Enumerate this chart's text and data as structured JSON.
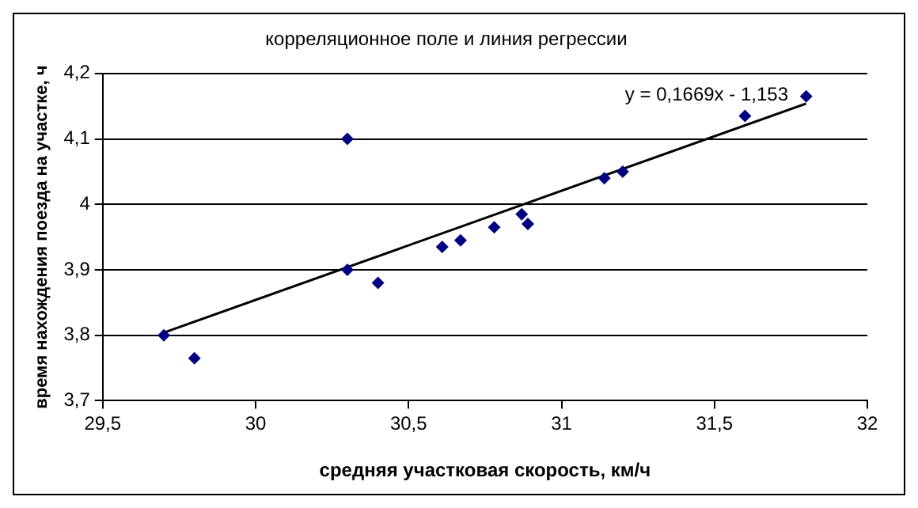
{
  "chart_data": {
    "type": "scatter",
    "title": "корреляционное поле и линия регрессии",
    "xlabel": "средняя участковая скорость, км/ч",
    "ylabel": "время нахождения поезда на участке, ч",
    "series": [
      {
        "color": "#000080",
        "marker": "diamond",
        "x": [
          29.7,
          29.8,
          30.3,
          30.3,
          30.4,
          30.61,
          30.67,
          30.78,
          30.87,
          30.89,
          31.14,
          31.2,
          31.6,
          31.8
        ],
        "values": [
          3.8,
          3.765,
          4.1,
          3.9,
          3.88,
          3.935,
          3.945,
          3.965,
          3.985,
          3.97,
          4.04,
          4.05,
          4.135,
          4.165
        ]
      },
      {
        "type": "line",
        "color": "#000000",
        "marker": "none",
        "x": [
          29.7,
          31.8
        ],
        "values": [
          3.804,
          4.154
        ]
      }
    ],
    "annotations": [
      "y = 0,1669x - 1,153"
    ],
    "xlim": [
      29.5,
      32
    ],
    "xticks": [
      {
        "value": 29.5,
        "label": "29,5"
      },
      30,
      {
        "value": 30.5,
        "label": "30,5"
      },
      31,
      {
        "value": 31.5,
        "label": "31,5"
      },
      32
    ],
    "ylim": [
      3.7,
      4.2
    ],
    "yticks": [
      {
        "value": 3.7,
        "label": "3,7"
      },
      {
        "value": 3.8,
        "label": "3,8"
      },
      {
        "value": 3.9,
        "label": "3,9"
      },
      4,
      {
        "value": 4.1,
        "label": "4,1"
      },
      {
        "value": 4.2,
        "label": "4,2"
      }
    ],
    "grid": "y",
    "legend": false
  }
}
